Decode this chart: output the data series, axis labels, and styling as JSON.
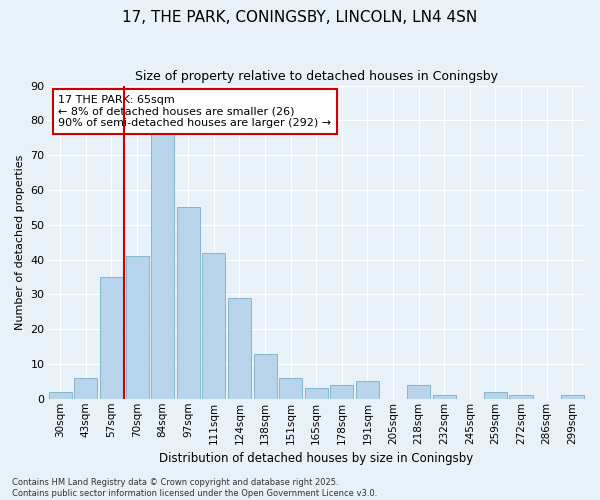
{
  "title": "17, THE PARK, CONINGSBY, LINCOLN, LN4 4SN",
  "subtitle": "Size of property relative to detached houses in Coningsby",
  "xlabel": "Distribution of detached houses by size in Coningsby",
  "ylabel": "Number of detached properties",
  "bar_color": "#b8d4ea",
  "bar_edge_color": "#7aafc8",
  "background_color": "#e8f0f8",
  "grid_color": "#ffffff",
  "categories": [
    "30sqm",
    "43sqm",
    "57sqm",
    "70sqm",
    "84sqm",
    "97sqm",
    "111sqm",
    "124sqm",
    "138sqm",
    "151sqm",
    "165sqm",
    "178sqm",
    "191sqm",
    "205sqm",
    "218sqm",
    "232sqm",
    "245sqm",
    "259sqm",
    "272sqm",
    "286sqm",
    "299sqm"
  ],
  "values": [
    2,
    6,
    35,
    41,
    76,
    55,
    42,
    29,
    13,
    6,
    3,
    4,
    5,
    0,
    4,
    1,
    0,
    2,
    1,
    0,
    1
  ],
  "ylim": [
    0,
    90
  ],
  "yticks": [
    0,
    10,
    20,
    30,
    40,
    50,
    60,
    70,
    80,
    90
  ],
  "vline_color": "#cc0000",
  "vline_index": 2.5,
  "annotation_text": "17 THE PARK: 65sqm\n← 8% of detached houses are smaller (26)\n90% of semi-detached houses are larger (292) →",
  "annotation_box_edge": "#cc0000",
  "footer_text": "Contains HM Land Registry data © Crown copyright and database right 2025.\nContains public sector information licensed under the Open Government Licence v3.0.",
  "fig_width": 6.0,
  "fig_height": 5.0,
  "dpi": 100
}
